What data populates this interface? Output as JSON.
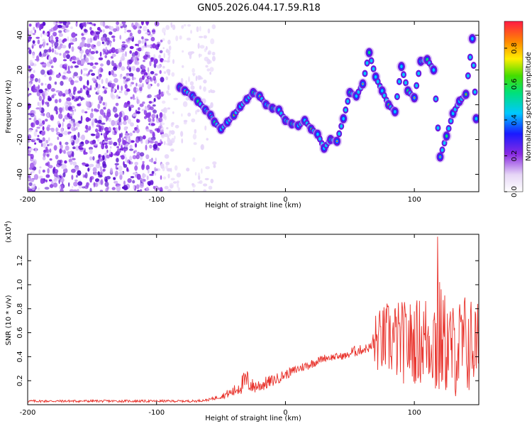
{
  "title": "GN05.2026.044.17.59.R18",
  "chart_data": [
    {
      "type": "heatmap",
      "name": "spectrogram",
      "xlabel": "Height of straight line (km)",
      "ylabel": "Frequency (Hz)",
      "xlim": [
        -200,
        150
      ],
      "ylim": [
        -50,
        48
      ],
      "xticks": [
        -200,
        -100,
        0,
        100
      ],
      "yticks": [
        -40,
        -20,
        0,
        20,
        40
      ],
      "colorbar": {
        "label": "Normalized spectral amplitude",
        "range": [
          0.0,
          0.95
        ],
        "ticks": [
          0.0,
          0.2,
          0.4,
          0.6,
          0.8
        ],
        "tick_labels": [
          "0.0",
          "0.2",
          "0.4",
          "0.6",
          "0.8"
        ]
      },
      "noise_region": {
        "x_from": -200,
        "x_to": -55,
        "freq_from": -50,
        "freq_to": 48
      },
      "ridge": {
        "x": [
          -82,
          -78,
          -72,
          -68,
          -62,
          -58,
          -55,
          -50,
          -45,
          -40,
          -35,
          -30,
          -25,
          -20,
          -15,
          -10,
          -5,
          0,
          5,
          10,
          15,
          20,
          25,
          30,
          35,
          40,
          45,
          50,
          55,
          60,
          65,
          70,
          75,
          80,
          85,
          90,
          95,
          100,
          105,
          110,
          115,
          120,
          125,
          130,
          135,
          140,
          145,
          148
        ],
        "freq": [
          10,
          8,
          5,
          2,
          -3,
          -6,
          -10,
          -14,
          -10,
          -6,
          -1,
          3,
          7,
          5,
          0,
          -2,
          -3,
          -9,
          -11,
          -12,
          -9,
          -14,
          -17,
          -25,
          -20,
          -21,
          -8,
          7,
          5,
          12,
          30,
          16,
          8,
          0,
          -4,
          22,
          8,
          4,
          25,
          26,
          20,
          -30,
          -18,
          -5,
          2,
          6,
          38,
          -8
        ]
      }
    },
    {
      "type": "line",
      "name": "snr",
      "xlabel": "Height of straight line (km)",
      "ylabel": "SNR (10 * v/v)",
      "y_multiplier": "(x10",
      "y_multiplier_exp": "4",
      "xlim": [
        -200,
        150
      ],
      "ylim": [
        0.0,
        1.42
      ],
      "xticks": [
        -200,
        -100,
        0,
        100
      ],
      "yticks": [
        0.2,
        0.4,
        0.6,
        0.8,
        1.0,
        1.2
      ],
      "ytick_labels": [
        "0.2",
        "0.4",
        "0.6",
        "0.8",
        "1.0",
        "1.2"
      ],
      "series": [
        {
          "name": "SNR",
          "color": "#e8312a",
          "envelope_x": [
            -200,
            -150,
            -100,
            -70,
            -60,
            -50,
            -40,
            -35,
            -30,
            -25,
            -20,
            -10,
            0,
            10,
            20,
            30,
            40,
            48,
            52,
            60,
            66,
            70,
            80,
            90,
            100,
            110,
            115,
            118,
            120,
            130,
            140,
            150
          ],
          "envelope_mean": [
            0.03,
            0.03,
            0.03,
            0.03,
            0.04,
            0.07,
            0.11,
            0.16,
            0.2,
            0.15,
            0.16,
            0.2,
            0.25,
            0.3,
            0.34,
            0.39,
            0.4,
            0.41,
            0.44,
            0.46,
            0.48,
            0.52,
            0.55,
            0.52,
            0.52,
            0.55,
            0.55,
            0.58,
            0.55,
            0.45,
            0.5,
            0.5
          ],
          "envelope_amp": [
            0.01,
            0.01,
            0.01,
            0.01,
            0.01,
            0.02,
            0.05,
            0.08,
            0.1,
            0.06,
            0.06,
            0.05,
            0.04,
            0.04,
            0.04,
            0.03,
            0.03,
            0.03,
            0.05,
            0.04,
            0.04,
            0.25,
            0.32,
            0.35,
            0.35,
            0.4,
            0.4,
            0.8,
            0.45,
            0.4,
            0.45,
            0.35
          ],
          "peak": {
            "x": 118,
            "y": 1.4
          }
        }
      ]
    }
  ]
}
